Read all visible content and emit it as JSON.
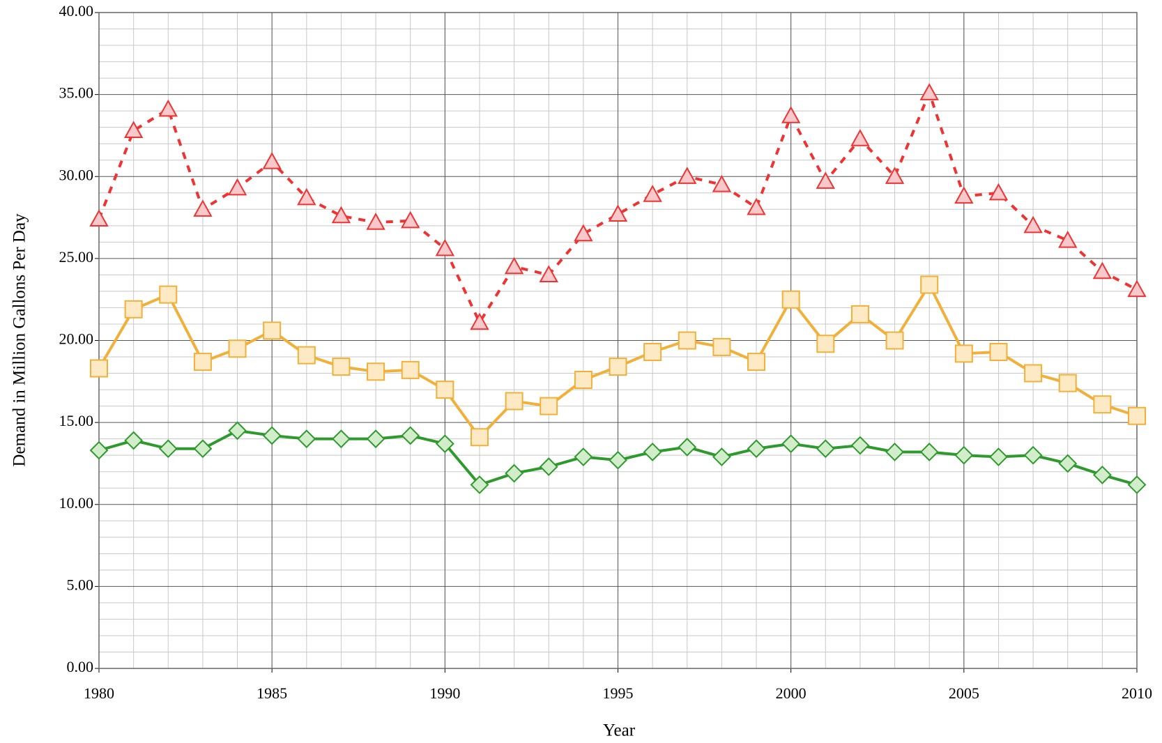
{
  "chart_data": {
    "type": "line",
    "xlabel": "Year",
    "ylabel": "Demand in Million Gallons Per Day",
    "x": [
      1980,
      1981,
      1982,
      1983,
      1984,
      1985,
      1986,
      1987,
      1988,
      1989,
      1990,
      1991,
      1992,
      1993,
      1994,
      1995,
      1996,
      1997,
      1998,
      1999,
      2000,
      2001,
      2002,
      2003,
      2004,
      2005,
      2006,
      2007,
      2008,
      2009,
      2010
    ],
    "series": [
      {
        "color": "#ee3333",
        "fill": "#f8c8cb",
        "marker": "triangle",
        "dashed": true,
        "values": [
          27.4,
          32.8,
          34.1,
          28.0,
          29.3,
          30.9,
          28.7,
          27.6,
          27.2,
          27.3,
          25.6,
          21.1,
          24.5,
          24.0,
          26.5,
          27.7,
          28.9,
          30.0,
          29.5,
          28.1,
          33.7,
          29.7,
          32.3,
          30.0,
          35.1,
          28.8,
          29.0,
          27.0,
          26.1,
          24.2,
          23.1
        ]
      },
      {
        "color": "#f0b03a",
        "fill": "#fdeac4",
        "marker": "square",
        "dashed": false,
        "values": [
          18.3,
          21.9,
          22.8,
          18.7,
          19.5,
          20.6,
          19.1,
          18.4,
          18.1,
          18.2,
          17.0,
          14.1,
          16.3,
          16.0,
          17.6,
          18.4,
          19.3,
          20.0,
          19.6,
          18.7,
          22.5,
          19.8,
          21.6,
          20.0,
          23.4,
          19.2,
          19.3,
          18.0,
          17.4,
          16.1,
          15.4
        ]
      },
      {
        "color": "#2e9a2e",
        "fill": "#d2edc9",
        "marker": "diamond",
        "dashed": false,
        "values": [
          13.3,
          13.9,
          13.4,
          13.4,
          14.5,
          14.2,
          14.0,
          14.0,
          14.0,
          14.2,
          13.7,
          11.2,
          11.9,
          12.3,
          12.9,
          12.7,
          13.2,
          13.5,
          12.9,
          13.4,
          13.7,
          13.4,
          13.6,
          13.2,
          13.2,
          13.0,
          12.9,
          13.0,
          12.5,
          11.8,
          11.2
        ]
      }
    ],
    "xlim": [
      1980,
      2010
    ],
    "xticks": [
      1980,
      1985,
      1990,
      1995,
      2000,
      2005,
      2010
    ],
    "ylim": [
      0,
      40
    ],
    "yticks": [
      {
        "value": 0,
        "label": "0.00"
      },
      {
        "value": 5,
        "label": "5.00"
      },
      {
        "value": 10,
        "label": "10.00"
      },
      {
        "value": 15,
        "label": "15.00"
      },
      {
        "value": 20,
        "label": "20.00"
      },
      {
        "value": 25,
        "label": "25.00"
      },
      {
        "value": 30,
        "label": "30.00"
      },
      {
        "value": 35,
        "label": "35.00"
      },
      {
        "value": 40,
        "label": "40.00"
      }
    ],
    "grid": true,
    "y_minor_divisions": 5,
    "x_minor_grid": true
  }
}
